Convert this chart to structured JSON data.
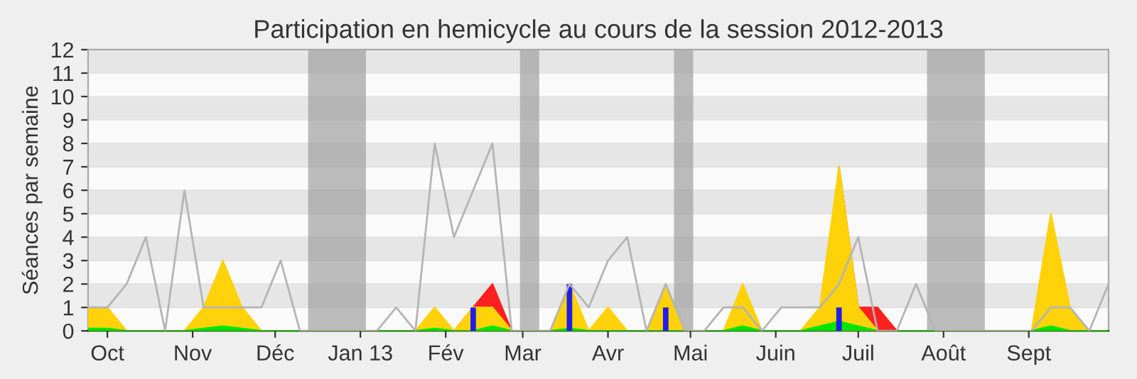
{
  "chart_data": {
    "type": "area",
    "title": "Participation en hemicycle au cours de la session 2012-2013",
    "ylabel": "Séances par semaine",
    "x": [
      "2012-09-24",
      "2012-10-01",
      "2012-10-08",
      "2012-10-15",
      "2012-10-22",
      "2012-10-29",
      "2012-11-05",
      "2012-11-12",
      "2012-11-19",
      "2012-11-26",
      "2012-12-03",
      "2012-12-10",
      "2012-12-17",
      "2012-12-24",
      "2012-12-31",
      "2013-01-07",
      "2013-01-14",
      "2013-01-21",
      "2013-01-28",
      "2013-02-04",
      "2013-02-11",
      "2013-02-18",
      "2013-02-25",
      "2013-03-04",
      "2013-03-11",
      "2013-03-18",
      "2013-03-25",
      "2013-04-01",
      "2013-04-08",
      "2013-04-15",
      "2013-04-22",
      "2013-04-29",
      "2013-05-06",
      "2013-05-13",
      "2013-05-20",
      "2013-05-27",
      "2013-06-03",
      "2013-06-10",
      "2013-06-17",
      "2013-06-24",
      "2013-07-01",
      "2013-07-08",
      "2013-07-15",
      "2013-07-22",
      "2013-07-29",
      "2013-08-05",
      "2013-08-12",
      "2013-08-19",
      "2013-08-26",
      "2013-09-02",
      "2013-09-09",
      "2013-09-16",
      "2013-09-23",
      "2013-09-30"
    ],
    "series": [
      {
        "type": "line",
        "color": "#b4b4b4",
        "values": [
          1,
          1,
          2,
          4,
          0,
          6,
          1,
          1,
          1,
          1,
          3,
          0,
          0,
          0,
          0,
          0,
          1,
          0,
          8,
          4,
          6,
          8,
          0,
          0,
          0,
          2,
          1,
          3,
          4,
          0,
          2,
          0,
          0,
          1,
          1,
          0,
          1,
          1,
          1,
          2,
          4,
          0,
          0,
          2,
          0,
          0,
          0,
          0,
          0,
          0,
          1,
          1,
          0,
          2
        ]
      },
      {
        "color": "#ff2020",
        "values": [
          null,
          null,
          null,
          null,
          null,
          null,
          null,
          null,
          null,
          null,
          null,
          null,
          null,
          null,
          null,
          null,
          null,
          null,
          null,
          0,
          1,
          2,
          0,
          null,
          null,
          null,
          null,
          null,
          null,
          null,
          null,
          null,
          null,
          null,
          null,
          null,
          null,
          null,
          null,
          7,
          1,
          1,
          0,
          null,
          null,
          null,
          null,
          null,
          null,
          null,
          null,
          null,
          null,
          null
        ]
      },
      {
        "color": "#ffd20a",
        "values": [
          1,
          1,
          0,
          0,
          0,
          0,
          1,
          3,
          1,
          0,
          0,
          0,
          0,
          0,
          0,
          0,
          0,
          0,
          1,
          0,
          1,
          1,
          0,
          0,
          0,
          2,
          0,
          1,
          0,
          0,
          2,
          0,
          0,
          0,
          2,
          0,
          0,
          0,
          1,
          7,
          1,
          0,
          0,
          0,
          0,
          0,
          0,
          0,
          0,
          0,
          5,
          1,
          0,
          0
        ]
      },
      {
        "color": "#00e600",
        "values": [
          0.1,
          0.1,
          0,
          0,
          0,
          0,
          0.1,
          0.2,
          0.1,
          0,
          0,
          0,
          0,
          0,
          0,
          0,
          0,
          0,
          0.1,
          0,
          0,
          0.2,
          0,
          0,
          0,
          0.1,
          0,
          0,
          0,
          0,
          0,
          0,
          0,
          0,
          0.2,
          0,
          0,
          0,
          0.2,
          0.4,
          0.2,
          0,
          0,
          0,
          0,
          0,
          0,
          0,
          0,
          0,
          0.2,
          0,
          0,
          0
        ]
      },
      {
        "type": "bar",
        "color": "#1e1ee6",
        "values": [
          null,
          null,
          null,
          null,
          null,
          null,
          null,
          null,
          null,
          null,
          null,
          null,
          null,
          null,
          null,
          null,
          null,
          null,
          null,
          null,
          1,
          null,
          null,
          null,
          null,
          2,
          null,
          null,
          null,
          null,
          1,
          null,
          null,
          null,
          null,
          null,
          null,
          null,
          null,
          1,
          null,
          null,
          null,
          null,
          null,
          null,
          null,
          null,
          null,
          null,
          null,
          null,
          null,
          null
        ]
      }
    ],
    "bands": [
      {
        "axis": "x",
        "from": "2012-12-13",
        "to": "2013-01-03",
        "color": "#a0a0a0"
      },
      {
        "axis": "x",
        "from": "2013-02-28",
        "to": "2013-03-07",
        "color": "#a0a0a0"
      },
      {
        "axis": "x",
        "from": "2013-04-25",
        "to": "2013-05-02",
        "color": "#a0a0a0"
      },
      {
        "axis": "x",
        "from": "2013-07-26",
        "to": "2013-08-16",
        "color": "#a0a0a0"
      }
    ],
    "xlim": [
      "2012-09-24",
      "2013-09-30"
    ],
    "ylim": [
      0,
      12
    ],
    "yticks": [
      0,
      1,
      2,
      3,
      4,
      5,
      6,
      7,
      8,
      9,
      10,
      11,
      12
    ],
    "xticks": [
      {
        "value": "2012-10-01",
        "label": "Oct"
      },
      {
        "value": "2012-11-01",
        "label": "Nov"
      },
      {
        "value": "2012-12-01",
        "label": "Déc"
      },
      {
        "value": "2013-01-01",
        "label": "Jan 13"
      },
      {
        "value": "2013-02-01",
        "label": "Fév"
      },
      {
        "value": "2013-03-01",
        "label": "Mar"
      },
      {
        "value": "2013-04-01",
        "label": "Avr"
      },
      {
        "value": "2013-05-01",
        "label": "Mai"
      },
      {
        "value": "2013-06-01",
        "label": "Juin"
      },
      {
        "value": "2013-07-01",
        "label": "Juil"
      },
      {
        "value": "2013-08-01",
        "label": "Août"
      },
      {
        "value": "2013-09-01",
        "label": "Sept"
      }
    ],
    "grid": "y"
  }
}
